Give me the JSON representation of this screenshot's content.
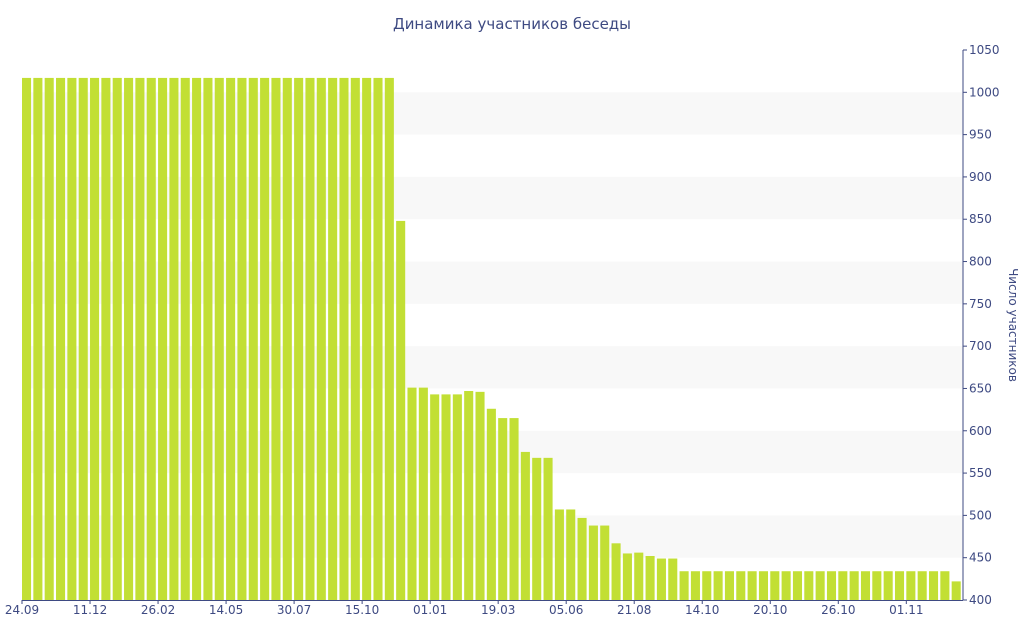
{
  "chart_data": {
    "type": "bar",
    "title": "Динамика участников беседы",
    "xlabel": "",
    "ylabel": "Число участников",
    "ylim": [
      400,
      1050
    ],
    "y_ticks": [
      400,
      450,
      500,
      550,
      600,
      650,
      700,
      750,
      800,
      850,
      900,
      950,
      1000,
      1050
    ],
    "y_axis_position": "right",
    "grid": "alternating horizontal bands",
    "legend": "none",
    "bar_color": "#c2df34",
    "band_color": "#f8f8f8",
    "axis_color": "#3e4a82",
    "x_tick_labels": [
      {
        "index": 0,
        "label": "24.09"
      },
      {
        "index": 6,
        "label": "11.12"
      },
      {
        "index": 12,
        "label": "26.02"
      },
      {
        "index": 18,
        "label": "14.05"
      },
      {
        "index": 24,
        "label": "30.07"
      },
      {
        "index": 30,
        "label": "15.10"
      },
      {
        "index": 36,
        "label": "01.01"
      },
      {
        "index": 42,
        "label": "19.03"
      },
      {
        "index": 48,
        "label": "05.06"
      },
      {
        "index": 54,
        "label": "21.08"
      },
      {
        "index": 60,
        "label": "14.10"
      },
      {
        "index": 66,
        "label": "20.10"
      },
      {
        "index": 72,
        "label": "26.10"
      },
      {
        "index": 78,
        "label": "01.11"
      }
    ],
    "values": [
      1017,
      1017,
      1017,
      1017,
      1017,
      1017,
      1017,
      1017,
      1017,
      1017,
      1017,
      1017,
      1017,
      1017,
      1017,
      1017,
      1017,
      1017,
      1017,
      1017,
      1017,
      1017,
      1017,
      1017,
      1017,
      1017,
      1017,
      1017,
      1017,
      1017,
      1017,
      1017,
      1017,
      848,
      651,
      651,
      643,
      643,
      643,
      647,
      646,
      626,
      615,
      615,
      575,
      568,
      568,
      507,
      507,
      497,
      488,
      488,
      467,
      455,
      456,
      452,
      449,
      449,
      434,
      434,
      434,
      434,
      434,
      434,
      434,
      434,
      434,
      434,
      434,
      434,
      434,
      434,
      434,
      434,
      434,
      434,
      434,
      434,
      434,
      434,
      434,
      434,
      422
    ]
  }
}
